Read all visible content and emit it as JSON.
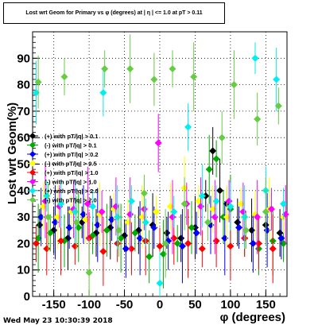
{
  "title": "Lost wrt Geom for Primary vs φ (degrees) at | η | <= 1.0 at pT > 0.11",
  "footer": "Wed May 23 10:30:39 2018",
  "chart_data": {
    "type": "scatter",
    "title": "Lost wrt Geom for Primary vs φ (degrees) at | η | <= 1.0 at pT > 0.11",
    "xlabel": "φ (degrees)",
    "ylabel": "Lost wrt Geom(%)",
    "xlim": [
      -180,
      180
    ],
    "ylim": [
      0,
      100
    ],
    "xticks": [
      "-150",
      "-100",
      "-50",
      "0",
      "50",
      "100",
      "150"
    ],
    "xtick_values": [
      -150,
      -100,
      -50,
      0,
      50,
      100,
      150
    ],
    "yticks": [
      "0",
      "10",
      "20",
      "30",
      "40",
      "50",
      "60",
      "70",
      "80",
      "90"
    ],
    "ytick_values": [
      0,
      10,
      20,
      30,
      40,
      50,
      60,
      70,
      80,
      90
    ],
    "grid": true,
    "legend_position": "left",
    "series": [
      {
        "name": "(+) with pT/|q| > 0.1",
        "color": "#000000",
        "marker": "diamond",
        "points": [
          [
            -170,
            27
          ],
          [
            -150,
            25
          ],
          [
            -130,
            22
          ],
          [
            -110,
            28
          ],
          [
            -90,
            24
          ],
          [
            -70,
            26
          ],
          [
            -50,
            23
          ],
          [
            -30,
            25
          ],
          [
            -10,
            27
          ],
          [
            10,
            24
          ],
          [
            30,
            22
          ],
          [
            50,
            26
          ],
          [
            65,
            38
          ],
          [
            75,
            55
          ],
          [
            85,
            40
          ],
          [
            95,
            35
          ],
          [
            110,
            28
          ],
          [
            130,
            25
          ],
          [
            150,
            27
          ],
          [
            170,
            24
          ]
        ]
      },
      {
        "name": "(-) with pT/|q| > 0.1",
        "color": "#00aa00",
        "marker": "diamond",
        "points": [
          [
            -172,
            22
          ],
          [
            -155,
            24
          ],
          [
            -135,
            21
          ],
          [
            -115,
            26
          ],
          [
            -95,
            23
          ],
          [
            -75,
            25
          ],
          [
            -55,
            22
          ],
          [
            -35,
            24
          ],
          [
            -15,
            15
          ],
          [
            5,
            16
          ],
          [
            25,
            20
          ],
          [
            45,
            26
          ],
          [
            70,
            48
          ],
          [
            80,
            52
          ],
          [
            90,
            30
          ],
          [
            100,
            33
          ],
          [
            120,
            22
          ],
          [
            140,
            18
          ],
          [
            160,
            21
          ],
          [
            175,
            20
          ]
        ]
      },
      {
        "name": "(+) with pT/|q| > 0.2",
        "color": "#0000ff",
        "marker": "diamond",
        "points": [
          [
            -168,
            30
          ],
          [
            -148,
            28
          ],
          [
            -128,
            26
          ],
          [
            -108,
            31
          ],
          [
            -88,
            27
          ],
          [
            -68,
            29
          ],
          [
            -48,
            18
          ],
          [
            -28,
            22
          ],
          [
            -8,
            26
          ],
          [
            12,
            21
          ],
          [
            32,
            19
          ],
          [
            52,
            24
          ],
          [
            72,
            27
          ],
          [
            92,
            22
          ],
          [
            112,
            26
          ],
          [
            132,
            20
          ],
          [
            152,
            25
          ],
          [
            172,
            22
          ]
        ]
      },
      {
        "name": "(-) with pT/|q| > 0.5",
        "color": "#ffff00",
        "marker": "diamond",
        "points": [
          [
            -165,
            34
          ],
          [
            -145,
            30
          ],
          [
            -125,
            32
          ],
          [
            -105,
            29
          ],
          [
            -85,
            31
          ],
          [
            -65,
            33
          ],
          [
            -45,
            28
          ],
          [
            -25,
            30
          ],
          [
            -5,
            32
          ],
          [
            15,
            34
          ],
          [
            35,
            41
          ],
          [
            55,
            36
          ],
          [
            75,
            33
          ],
          [
            95,
            30
          ],
          [
            115,
            35
          ],
          [
            135,
            31
          ],
          [
            155,
            33
          ],
          [
            175,
            30
          ]
        ]
      },
      {
        "name": "(+) with pT/|q| > 1.0",
        "color": "#ff0000",
        "marker": "diamond",
        "points": [
          [
            -175,
            20
          ],
          [
            -160,
            18
          ],
          [
            -140,
            21
          ],
          [
            -120,
            19
          ],
          [
            -100,
            22
          ],
          [
            -80,
            17
          ],
          [
            -60,
            20
          ],
          [
            -40,
            18
          ],
          [
            -20,
            21
          ],
          [
            0,
            19
          ],
          [
            20,
            22
          ],
          [
            40,
            20
          ],
          [
            60,
            18
          ],
          [
            80,
            21
          ],
          [
            100,
            19
          ],
          [
            120,
            22
          ],
          [
            140,
            20
          ],
          [
            160,
            18
          ]
        ]
      },
      {
        "name": "(-) with pT/|q| > 1.0",
        "color": "#ff00ff",
        "marker": "diamond",
        "points": [
          [
            -162,
            36
          ],
          [
            -142,
            34
          ],
          [
            -122,
            33
          ],
          [
            -102,
            35
          ],
          [
            -82,
            32
          ],
          [
            -62,
            34
          ],
          [
            -42,
            31
          ],
          [
            -22,
            33
          ],
          [
            -2,
            58
          ],
          [
            18,
            30
          ],
          [
            38,
            35
          ],
          [
            58,
            34
          ],
          [
            78,
            30
          ],
          [
            98,
            36
          ],
          [
            118,
            32
          ],
          [
            138,
            30
          ],
          [
            158,
            33
          ],
          [
            178,
            31
          ]
        ]
      },
      {
        "name": "(+) with pT/|q| > 2.0",
        "color": "#00eeee",
        "marker": "diamond",
        "points": [
          [
            -175,
            77
          ],
          [
            -160,
            38
          ],
          [
            -140,
            35
          ],
          [
            -120,
            32
          ],
          [
            -95,
            34
          ],
          [
            -80,
            77
          ],
          [
            -60,
            30
          ],
          [
            -40,
            36
          ],
          [
            -20,
            28
          ],
          [
            0,
            5
          ],
          [
            20,
            32
          ],
          [
            40,
            64
          ],
          [
            60,
            38
          ],
          [
            80,
            36
          ],
          [
            100,
            34
          ],
          [
            120,
            30
          ],
          [
            135,
            90
          ],
          [
            150,
            40
          ],
          [
            165,
            82
          ],
          [
            175,
            35
          ]
        ]
      },
      {
        "name": "(-) with pT/|q| > 2.0",
        "color": "#66cc44",
        "marker": "diamond",
        "points": [
          [
            -172,
            81
          ],
          [
            -158,
            30
          ],
          [
            -135,
            83
          ],
          [
            -118,
            28
          ],
          [
            -100,
            9
          ],
          [
            -78,
            86
          ],
          [
            -58,
            25
          ],
          [
            -42,
            86
          ],
          [
            -22,
            39
          ],
          [
            -8,
            82
          ],
          [
            8,
            20
          ],
          [
            18,
            86
          ],
          [
            35,
            35
          ],
          [
            48,
            83
          ],
          [
            68,
            28
          ],
          [
            88,
            60
          ],
          [
            105,
            80
          ],
          [
            122,
            25
          ],
          [
            138,
            67
          ],
          [
            150,
            32
          ],
          [
            168,
            72
          ]
        ]
      }
    ]
  }
}
